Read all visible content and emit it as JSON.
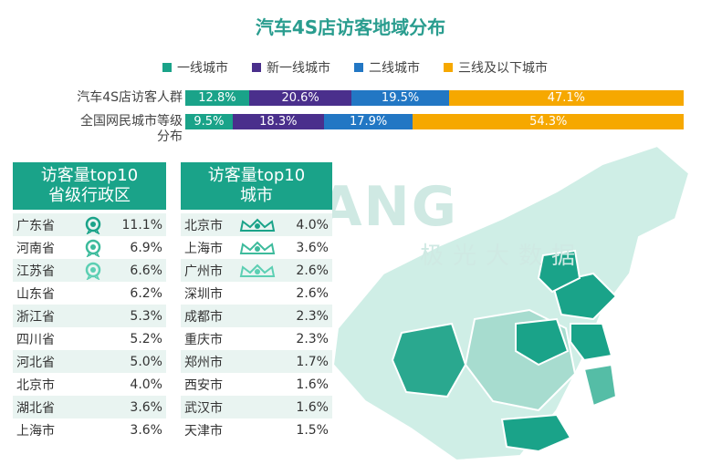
{
  "title": "汽车4S店访客地域分布",
  "colors": {
    "tier1": "#1aa389",
    "newtier1": "#4a2f8c",
    "tier2": "#2277c4",
    "tier3": "#f6a800",
    "panel_head": "#1aa389",
    "map_light": "#b9e3d9",
    "map_dark": "#1aa389"
  },
  "legend": [
    "一线城市",
    "新一线城市",
    "二线城市",
    "三线及以下城市"
  ],
  "chart_data": {
    "type": "bar",
    "orientation": "horizontal-stacked",
    "title": "汽车4S店访客地域分布",
    "categories": [
      "汽车4S店访客人群",
      "全国网民城市等级分布"
    ],
    "series": [
      {
        "name": "一线城市",
        "values": [
          12.8,
          9.5
        ],
        "labels": [
          "12.8%",
          "9.5%"
        ]
      },
      {
        "name": "新一线城市",
        "values": [
          20.6,
          18.3
        ],
        "labels": [
          "20.6%",
          "18.3%"
        ]
      },
      {
        "name": "二线城市",
        "values": [
          19.5,
          17.9
        ],
        "labels": [
          "19.5%",
          "17.9%"
        ]
      },
      {
        "name": "三线及以下城市",
        "values": [
          47.1,
          54.3
        ],
        "labels": [
          "47.1%",
          "54.3%"
        ]
      }
    ],
    "unit": "%",
    "xlim": [
      0,
      100
    ]
  },
  "rows": [
    {
      "label": "汽车4S店访客人群"
    },
    {
      "label": "全国网民城市等级\n分布"
    }
  ],
  "provinces": {
    "header": "访客量top10\n省级行政区",
    "items": [
      {
        "name": "广东省",
        "value": "11.1%",
        "icon": "medal-gold-icon"
      },
      {
        "name": "河南省",
        "value": "6.9%",
        "icon": "medal-silver-icon"
      },
      {
        "name": "江苏省",
        "value": "6.6%",
        "icon": "medal-bronze-icon"
      },
      {
        "name": "山东省",
        "value": "6.2%"
      },
      {
        "name": "浙江省",
        "value": "5.3%"
      },
      {
        "name": "四川省",
        "value": "5.2%"
      },
      {
        "name": "河北省",
        "value": "5.0%"
      },
      {
        "name": "北京市",
        "value": "4.0%"
      },
      {
        "name": "湖北省",
        "value": "3.6%"
      },
      {
        "name": "上海市",
        "value": "3.6%"
      }
    ]
  },
  "cities": {
    "header": "访客量top10\n城市",
    "items": [
      {
        "name": "北京市",
        "value": "4.0%",
        "icon": "crown-gold-icon"
      },
      {
        "name": "上海市",
        "value": "3.6%",
        "icon": "crown-silver-icon"
      },
      {
        "name": "广州市",
        "value": "2.6%",
        "icon": "crown-bronze-icon"
      },
      {
        "name": "深圳市",
        "value": "2.6%"
      },
      {
        "name": "成都市",
        "value": "2.3%"
      },
      {
        "name": "重庆市",
        "value": "2.3%"
      },
      {
        "name": "郑州市",
        "value": "1.7%"
      },
      {
        "name": "西安市",
        "value": "1.6%"
      },
      {
        "name": "武汉市",
        "value": "1.6%"
      },
      {
        "name": "天津市",
        "value": "1.5%"
      }
    ]
  },
  "watermark": {
    "brand": "GUANG",
    "cn": "极光大数据"
  }
}
